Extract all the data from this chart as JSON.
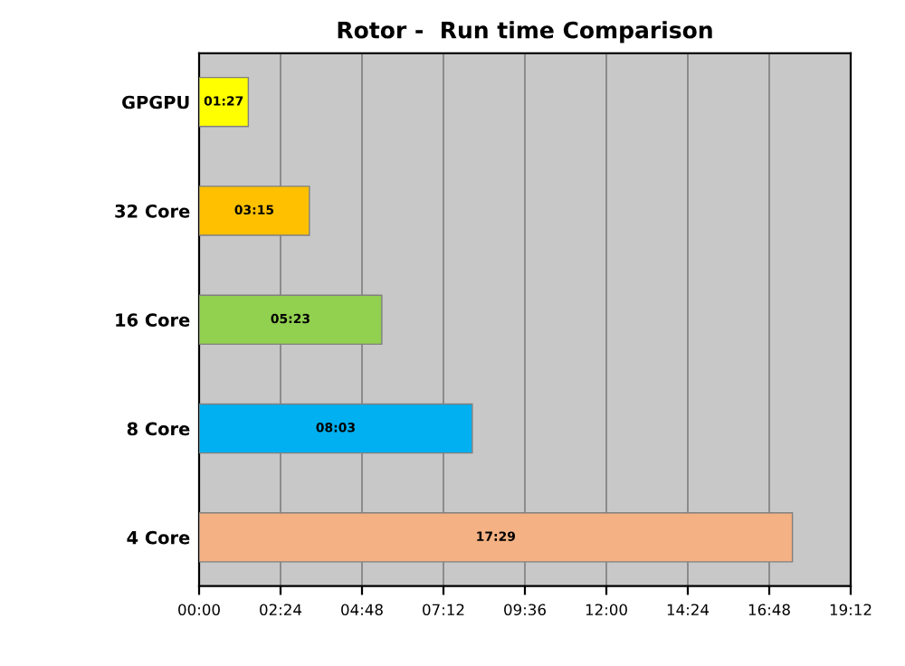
{
  "chart_data": {
    "type": "bar",
    "orientation": "horizontal",
    "title": "Rotor -  Run time Comparison",
    "categories": [
      "GPGPU",
      "32 Core",
      "16 Core",
      "8 Core",
      "4 Core"
    ],
    "values": [
      1.45,
      3.25,
      5.383,
      8.05,
      17.483
    ],
    "value_labels": [
      "01:27",
      "03:15",
      "05:23",
      "08:03",
      "17:29"
    ],
    "colors": [
      "#ffff00",
      "#ffc000",
      "#92d050",
      "#00b0f0",
      "#f4b183"
    ],
    "xlim": [
      0,
      19.2
    ],
    "xticks": [
      {
        "value": 0,
        "label": "00:00"
      },
      {
        "value": 2.4,
        "label": "02:24"
      },
      {
        "value": 4.8,
        "label": "04:48"
      },
      {
        "value": 7.2,
        "label": "07:12"
      },
      {
        "value": 9.6,
        "label": "09:36"
      },
      {
        "value": 12,
        "label": "12:00"
      },
      {
        "value": 14.4,
        "label": "14:24"
      },
      {
        "value": 16.8,
        "label": "16:48"
      },
      {
        "value": 19.2,
        "label": "19:12"
      }
    ],
    "grid": "x"
  }
}
